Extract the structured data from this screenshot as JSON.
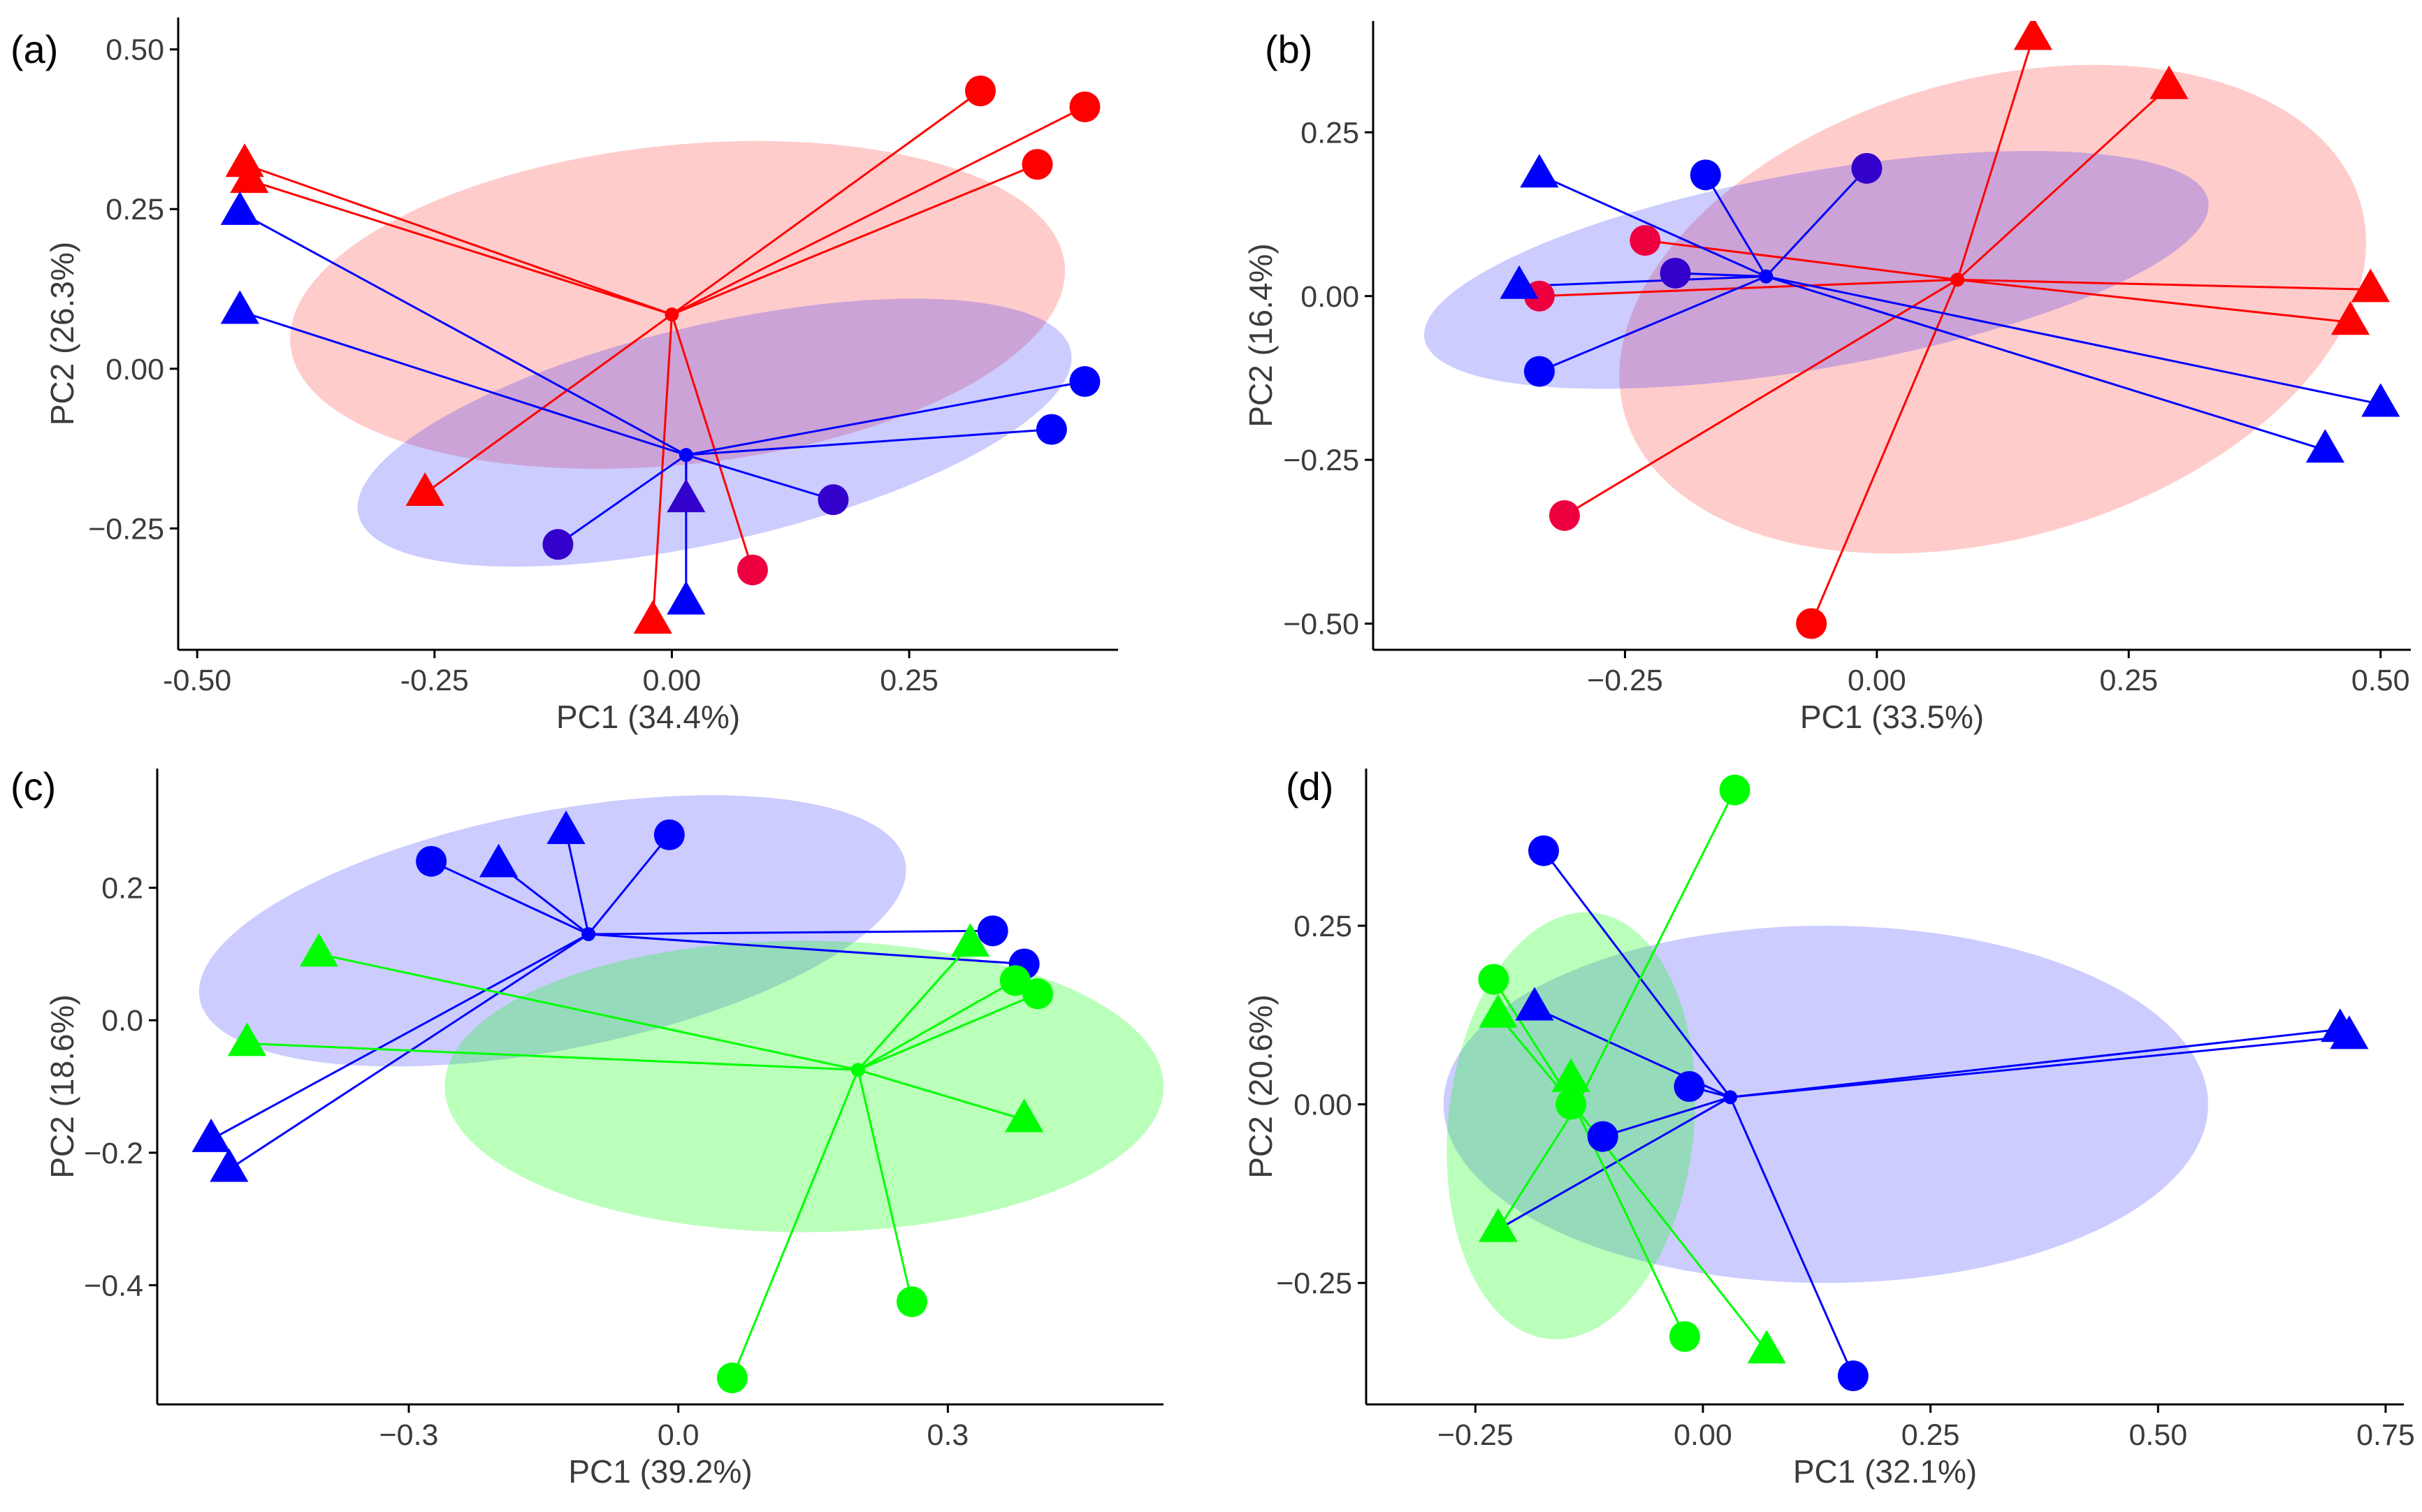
{
  "figure": {
    "colors": {
      "red": "#ff0000",
      "blue": "#0000ff",
      "green": "#00ff00",
      "purple": "#3300cc",
      "crimson": "#ee0040"
    }
  },
  "chart_data": [
    {
      "type": "scatter",
      "panel_label": "(a)",
      "xlabel": "PC1 (34.4%)",
      "ylabel": "PC2 (26.3%)",
      "xlim": [
        -0.52,
        0.47
      ],
      "ylim": [
        -0.44,
        0.55
      ],
      "xticks": [
        -0.5,
        -0.25,
        0.0,
        0.25
      ],
      "xtick_labels": [
        "-0.50",
        "-0.25",
        "0.00",
        "0.25"
      ],
      "yticks": [
        -0.25,
        0.0,
        0.25,
        0.5
      ],
      "ytick_labels": [
        "−0.25",
        "0.00",
        "0.25",
        "0.50"
      ],
      "groups": [
        {
          "name": "red",
          "color": "#ff0000",
          "fill_opacity": 0.2,
          "centroid": [
            0.0,
            0.085
          ],
          "ellipse": {
            "cx": 0.006,
            "cy": 0.1,
            "rx": 0.41,
            "ry": 0.25,
            "angle": 6
          },
          "points": [
            {
              "x": 0.325,
              "y": 0.435,
              "shape": "circle"
            },
            {
              "x": 0.435,
              "y": 0.41,
              "shape": "circle"
            },
            {
              "x": 0.385,
              "y": 0.32,
              "shape": "circle"
            },
            {
              "x": 0.085,
              "y": -0.315,
              "shape": "circle",
              "color": "#ee0040"
            },
            {
              "x": -0.45,
              "y": 0.32,
              "shape": "triangle"
            },
            {
              "x": -0.445,
              "y": 0.295,
              "shape": "triangle"
            },
            {
              "x": -0.26,
              "y": -0.195,
              "shape": "triangle"
            },
            {
              "x": -0.02,
              "y": -0.395,
              "shape": "triangle"
            }
          ]
        },
        {
          "name": "blue",
          "color": "#0000ff",
          "fill_opacity": 0.2,
          "centroid": [
            0.015,
            -0.135
          ],
          "ellipse": {
            "cx": 0.045,
            "cy": -0.1,
            "rx": 0.385,
            "ry": 0.17,
            "angle": 13
          },
          "points": [
            {
              "x": 0.435,
              "y": -0.02,
              "shape": "circle"
            },
            {
              "x": 0.4,
              "y": -0.095,
              "shape": "circle"
            },
            {
              "x": 0.17,
              "y": -0.205,
              "shape": "circle",
              "color": "#3300cc"
            },
            {
              "x": -0.12,
              "y": -0.275,
              "shape": "circle",
              "color": "#3300cc"
            },
            {
              "x": -0.455,
              "y": 0.245,
              "shape": "triangle"
            },
            {
              "x": -0.455,
              "y": 0.09,
              "shape": "triangle"
            },
            {
              "x": 0.015,
              "y": -0.205,
              "shape": "triangle",
              "color": "#3300cc"
            },
            {
              "x": 0.015,
              "y": -0.365,
              "shape": "triangle"
            }
          ]
        }
      ]
    },
    {
      "type": "scatter",
      "panel_label": "(b)",
      "xlabel": "PC1 (33.5%)",
      "ylabel": "PC2 (16.4%)",
      "xlim": [
        -0.5,
        0.53
      ],
      "ylim": [
        -0.54,
        0.42
      ],
      "xticks": [
        -0.25,
        0.0,
        0.25,
        0.5
      ],
      "xtick_labels": [
        "−0.25",
        "0.00",
        "0.25",
        "0.50"
      ],
      "yticks": [
        -0.5,
        -0.25,
        0.0,
        0.25
      ],
      "ytick_labels": [
        "−0.50",
        "−0.25",
        "0.00",
        "0.25"
      ],
      "groups": [
        {
          "name": "red",
          "color": "#ff0000",
          "fill_opacity": 0.2,
          "centroid": [
            0.08,
            0.025
          ],
          "ellipse": {
            "cx": 0.115,
            "cy": -0.02,
            "rx": 0.38,
            "ry": 0.35,
            "angle": 16
          },
          "points": [
            {
              "x": 0.155,
              "y": 0.395,
              "shape": "triangle"
            },
            {
              "x": 0.29,
              "y": 0.32,
              "shape": "triangle"
            },
            {
              "x": 0.49,
              "y": 0.01,
              "shape": "triangle"
            },
            {
              "x": 0.47,
              "y": -0.04,
              "shape": "triangle"
            },
            {
              "x": -0.23,
              "y": 0.085,
              "shape": "circle",
              "color": "#ee0040"
            },
            {
              "x": -0.335,
              "y": 0.0,
              "shape": "circle",
              "color": "#ee0040"
            },
            {
              "x": -0.31,
              "y": -0.335,
              "shape": "circle",
              "color": "#ee0040"
            },
            {
              "x": -0.065,
              "y": -0.5,
              "shape": "circle"
            }
          ]
        },
        {
          "name": "blue",
          "color": "#0000ff",
          "fill_opacity": 0.2,
          "centroid": [
            -0.11,
            0.03
          ],
          "ellipse": {
            "cx": -0.06,
            "cy": 0.04,
            "rx": 0.395,
            "ry": 0.15,
            "angle": 10
          },
          "points": [
            {
              "x": -0.335,
              "y": 0.185,
              "shape": "triangle"
            },
            {
              "x": -0.355,
              "y": 0.015,
              "shape": "triangle"
            },
            {
              "x": 0.5,
              "y": -0.165,
              "shape": "triangle"
            },
            {
              "x": 0.445,
              "y": -0.235,
              "shape": "triangle"
            },
            {
              "x": -0.17,
              "y": 0.185,
              "shape": "circle"
            },
            {
              "x": -0.01,
              "y": 0.195,
              "shape": "circle",
              "color": "#3300cc"
            },
            {
              "x": -0.2,
              "y": 0.035,
              "shape": "circle",
              "color": "#3300cc"
            },
            {
              "x": -0.335,
              "y": -0.115,
              "shape": "circle"
            }
          ]
        }
      ]
    },
    {
      "type": "scatter",
      "panel_label": "(c)",
      "xlabel": "PC1 (39.2%)",
      "ylabel": "PC2 (18.6%)",
      "xlim": [
        -0.58,
        0.54
      ],
      "ylim": [
        -0.58,
        0.38
      ],
      "xticks": [
        -0.3,
        0.0,
        0.3
      ],
      "xtick_labels": [
        "−0.3",
        "0.0",
        "0.3"
      ],
      "yticks": [
        -0.4,
        -0.2,
        0.0,
        0.2
      ],
      "ytick_labels": [
        "−0.4",
        "−0.2",
        "0.0",
        "0.2"
      ],
      "groups": [
        {
          "name": "blue",
          "color": "#0000ff",
          "fill_opacity": 0.2,
          "centroid": [
            -0.1,
            0.13
          ],
          "ellipse": {
            "cx": -0.14,
            "cy": 0.135,
            "rx": 0.4,
            "ry": 0.18,
            "angle": 11
          },
          "points": [
            {
              "x": -0.275,
              "y": 0.24,
              "shape": "circle"
            },
            {
              "x": -0.01,
              "y": 0.28,
              "shape": "circle"
            },
            {
              "x": 0.35,
              "y": 0.135,
              "shape": "circle"
            },
            {
              "x": 0.385,
              "y": 0.085,
              "shape": "circle"
            },
            {
              "x": -0.2,
              "y": 0.235,
              "shape": "triangle"
            },
            {
              "x": -0.125,
              "y": 0.285,
              "shape": "triangle"
            },
            {
              "x": -0.52,
              "y": -0.18,
              "shape": "triangle"
            },
            {
              "x": -0.5,
              "y": -0.225,
              "shape": "triangle"
            }
          ]
        },
        {
          "name": "green",
          "color": "#00ff00",
          "fill_opacity": 0.27,
          "centroid": [
            0.2,
            -0.075
          ],
          "ellipse": {
            "cx": 0.14,
            "cy": -0.1,
            "rx": 0.4,
            "ry": 0.22,
            "angle": 0
          },
          "points": [
            {
              "x": -0.4,
              "y": 0.1,
              "shape": "triangle"
            },
            {
              "x": -0.48,
              "y": -0.035,
              "shape": "triangle"
            },
            {
              "x": 0.325,
              "y": 0.115,
              "shape": "triangle"
            },
            {
              "x": 0.385,
              "y": -0.15,
              "shape": "triangle"
            },
            {
              "x": 0.375,
              "y": 0.06,
              "shape": "circle"
            },
            {
              "x": 0.4,
              "y": 0.04,
              "shape": "circle"
            },
            {
              "x": 0.26,
              "y": -0.425,
              "shape": "circle"
            },
            {
              "x": 0.06,
              "y": -0.54,
              "shape": "circle"
            }
          ]
        }
      ]
    },
    {
      "type": "scatter",
      "panel_label": "(d)",
      "xlabel": "PC1 (32.1%)",
      "ylabel": "PC2 (20.6%)",
      "xlim": [
        -0.37,
        0.77
      ],
      "ylim": [
        -0.42,
        0.47
      ],
      "xticks": [
        -0.25,
        0.0,
        0.25,
        0.5,
        0.75
      ],
      "xtick_labels": [
        "−0.25",
        "0.00",
        "0.25",
        "0.50",
        "0.75"
      ],
      "yticks": [
        -0.25,
        0.0,
        0.25
      ],
      "ytick_labels": [
        "−0.25",
        "0.00",
        "0.25"
      ],
      "groups": [
        {
          "name": "blue",
          "color": "#0000ff",
          "fill_opacity": 0.2,
          "centroid": [
            0.03,
            0.01
          ],
          "ellipse": {
            "cx": 0.135,
            "cy": 0.0,
            "rx": 0.42,
            "ry": 0.25,
            "angle": 0
          },
          "points": [
            {
              "x": -0.175,
              "y": 0.355,
              "shape": "circle"
            },
            {
              "x": -0.015,
              "y": 0.025,
              "shape": "circle"
            },
            {
              "x": -0.11,
              "y": -0.045,
              "shape": "circle"
            },
            {
              "x": 0.165,
              "y": -0.38,
              "shape": "circle"
            },
            {
              "x": -0.185,
              "y": 0.135,
              "shape": "triangle"
            },
            {
              "x": -0.225,
              "y": -0.175,
              "shape": "triangle"
            },
            {
              "x": 0.7,
              "y": 0.105,
              "shape": "triangle"
            },
            {
              "x": 0.71,
              "y": 0.095,
              "shape": "triangle"
            }
          ]
        },
        {
          "name": "green",
          "color": "#00ff00",
          "fill_opacity": 0.27,
          "centroid": [
            -0.14,
            -0.005
          ],
          "ellipse": {
            "cx": -0.145,
            "cy": -0.03,
            "rx": 0.135,
            "ry": 0.3,
            "angle": -6
          },
          "points": [
            {
              "x": 0.035,
              "y": 0.44,
              "shape": "circle"
            },
            {
              "x": -0.23,
              "y": 0.175,
              "shape": "circle"
            },
            {
              "x": -0.145,
              "y": 0.0,
              "shape": "circle"
            },
            {
              "x": -0.02,
              "y": -0.325,
              "shape": "circle"
            },
            {
              "x": -0.225,
              "y": 0.125,
              "shape": "triangle"
            },
            {
              "x": -0.145,
              "y": 0.035,
              "shape": "triangle"
            },
            {
              "x": -0.225,
              "y": -0.175,
              "shape": "triangle"
            },
            {
              "x": 0.07,
              "y": -0.345,
              "shape": "triangle"
            }
          ]
        }
      ]
    }
  ]
}
